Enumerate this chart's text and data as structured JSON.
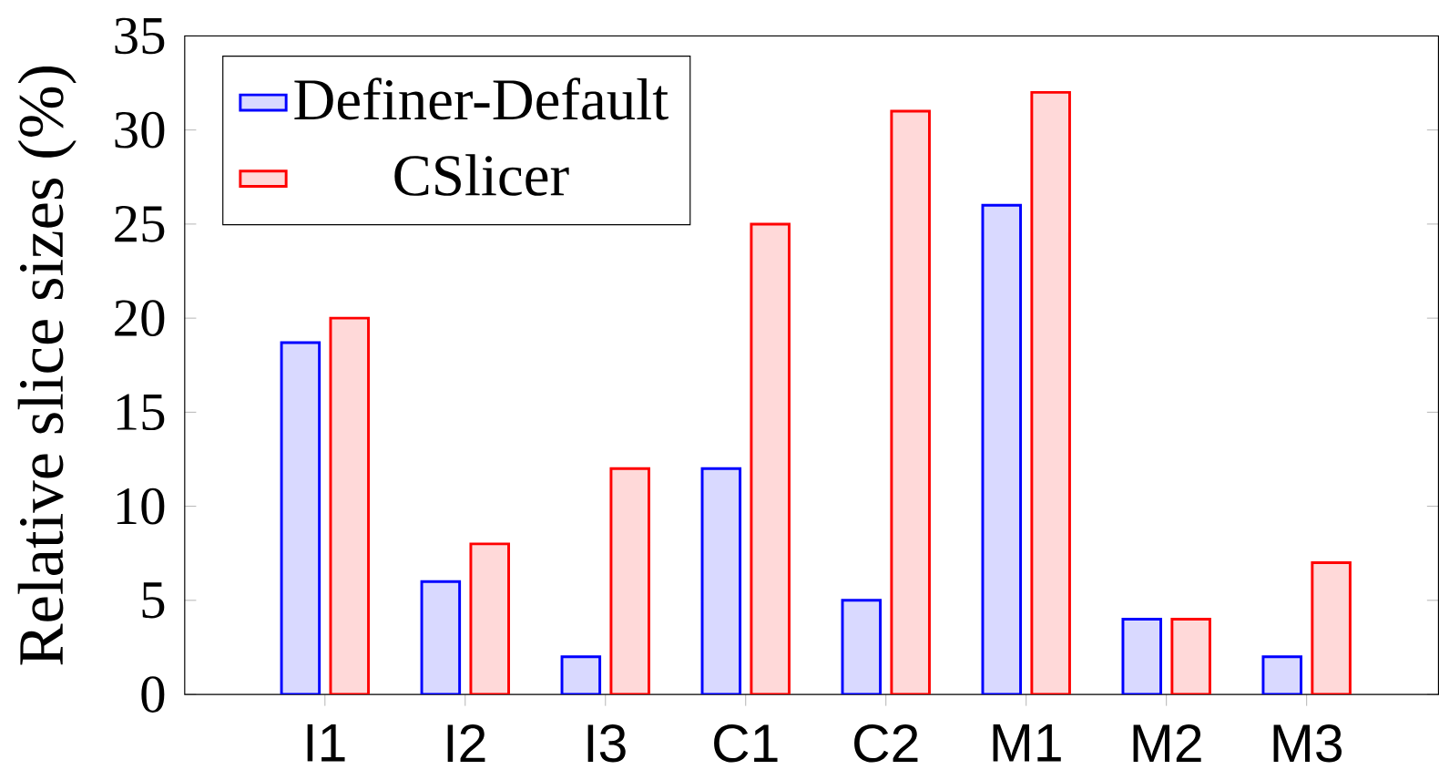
{
  "chart_data": {
    "type": "bar",
    "ylabel": "Relative slice sizes (%)",
    "categories": [
      "I1",
      "I2",
      "I3",
      "C1",
      "C2",
      "M1",
      "M2",
      "M3"
    ],
    "series": [
      {
        "name": "Definer-Default",
        "color": "#d9d9ff",
        "values": [
          18.7,
          6,
          2,
          12,
          5,
          26,
          4,
          2
        ]
      },
      {
        "name": "CSlicer",
        "color": "#ffd9d9",
        "values": [
          20,
          8,
          12,
          25,
          31,
          32,
          4,
          7
        ]
      }
    ],
    "ylim": [
      0,
      35
    ],
    "yticks": [
      0,
      5,
      10,
      15,
      20,
      25,
      30,
      35
    ],
    "legend": "top left"
  }
}
